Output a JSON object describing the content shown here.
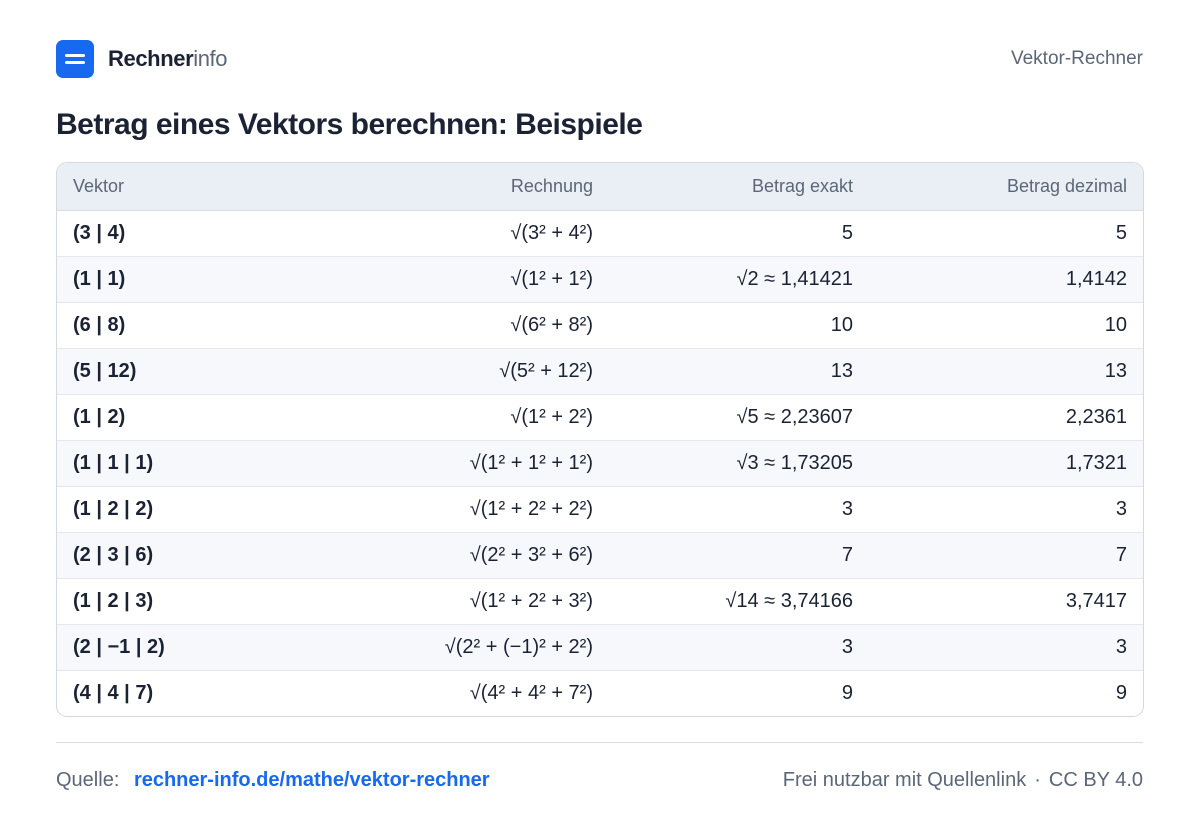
{
  "header": {
    "brand_bold": "Rechner",
    "brand_light": "info",
    "right_label": "Vektor-Rechner",
    "accent_color": "#1769f0"
  },
  "title": "Betrag eines Vektors berechnen: Beispiele",
  "table": {
    "columns": [
      "Vektor",
      "Rechnung",
      "Betrag exakt",
      "Betrag dezimal"
    ],
    "rows": [
      {
        "vector": "(3 | 4)",
        "calc": "√(3² + 4²)",
        "exact": "5",
        "decimal": "5"
      },
      {
        "vector": "(1 | 1)",
        "calc": "√(1² + 1²)",
        "exact": "√2 ≈ 1,41421",
        "decimal": "1,4142"
      },
      {
        "vector": "(6 | 8)",
        "calc": "√(6² + 8²)",
        "exact": "10",
        "decimal": "10"
      },
      {
        "vector": "(5 | 12)",
        "calc": "√(5² + 12²)",
        "exact": "13",
        "decimal": "13"
      },
      {
        "vector": "(1 | 2)",
        "calc": "√(1² + 2²)",
        "exact": "√5 ≈ 2,23607",
        "decimal": "2,2361"
      },
      {
        "vector": "(1 | 1 | 1)",
        "calc": "√(1² + 1² + 1²)",
        "exact": "√3 ≈ 1,73205",
        "decimal": "1,7321"
      },
      {
        "vector": "(1 | 2 | 2)",
        "calc": "√(1² + 2² + 2²)",
        "exact": "3",
        "decimal": "3"
      },
      {
        "vector": "(2 | 3 | 6)",
        "calc": "√(2² + 3² + 6²)",
        "exact": "7",
        "decimal": "7"
      },
      {
        "vector": "(1 | 2 | 3)",
        "calc": "√(1² + 2² + 3²)",
        "exact": "√14 ≈ 3,74166",
        "decimal": "3,7417"
      },
      {
        "vector": "(2 | −1 | 2)",
        "calc": "√(2² + (−1)² + 2²)",
        "exact": "3",
        "decimal": "3"
      },
      {
        "vector": "(4 | 4 | 7)",
        "calc": "√(4² + 4² + 7²)",
        "exact": "9",
        "decimal": "9"
      }
    ]
  },
  "footer": {
    "source_label": "Quelle:",
    "source_link": "rechner-info.de/mathe/vektor-rechner",
    "license_text": "Frei nutzbar mit Quellenlink",
    "separator": "·",
    "license": "CC BY 4.0"
  }
}
